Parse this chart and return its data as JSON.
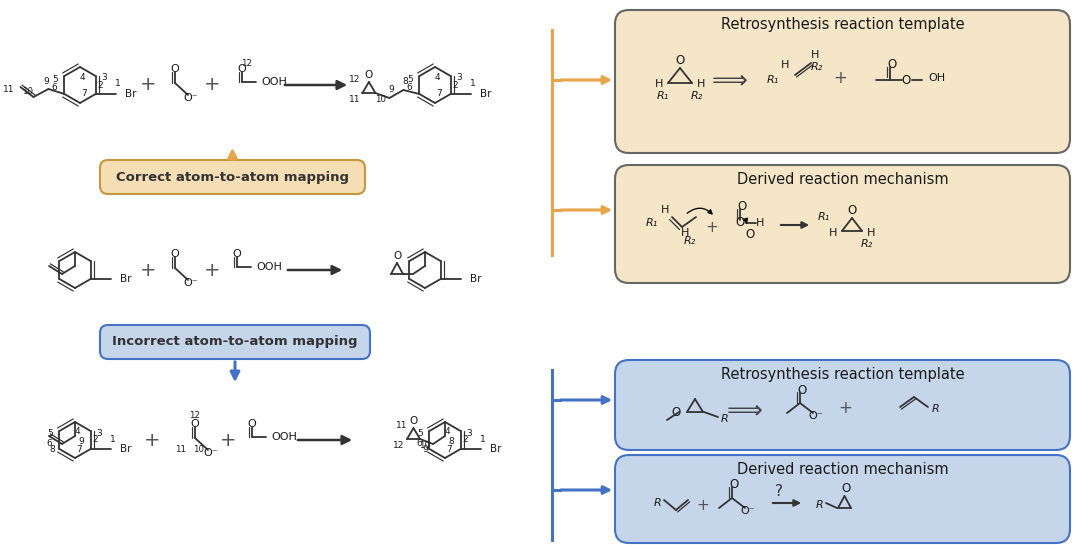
{
  "bg_color": "#ffffff",
  "orange_color": "#E8A44A",
  "orange_fill": "#F5E6C8",
  "orange_border": "#C8963C",
  "blue_color": "#4472C4",
  "blue_fill": "#C5D5EA",
  "blue_border": "#4472C4",
  "box_border": "#666666",
  "text_color": "#222222",
  "title_top1": "Retrosynthesis reaction template",
  "title_top2": "Derived reaction mechanism",
  "title_bot1": "Retrosynthesis reaction template",
  "title_bot2": "Derived reaction mechanism",
  "correct_label": "Correct atom-to-atom mapping",
  "incorrect_label": "Incorrect atom-to-atom mapping"
}
